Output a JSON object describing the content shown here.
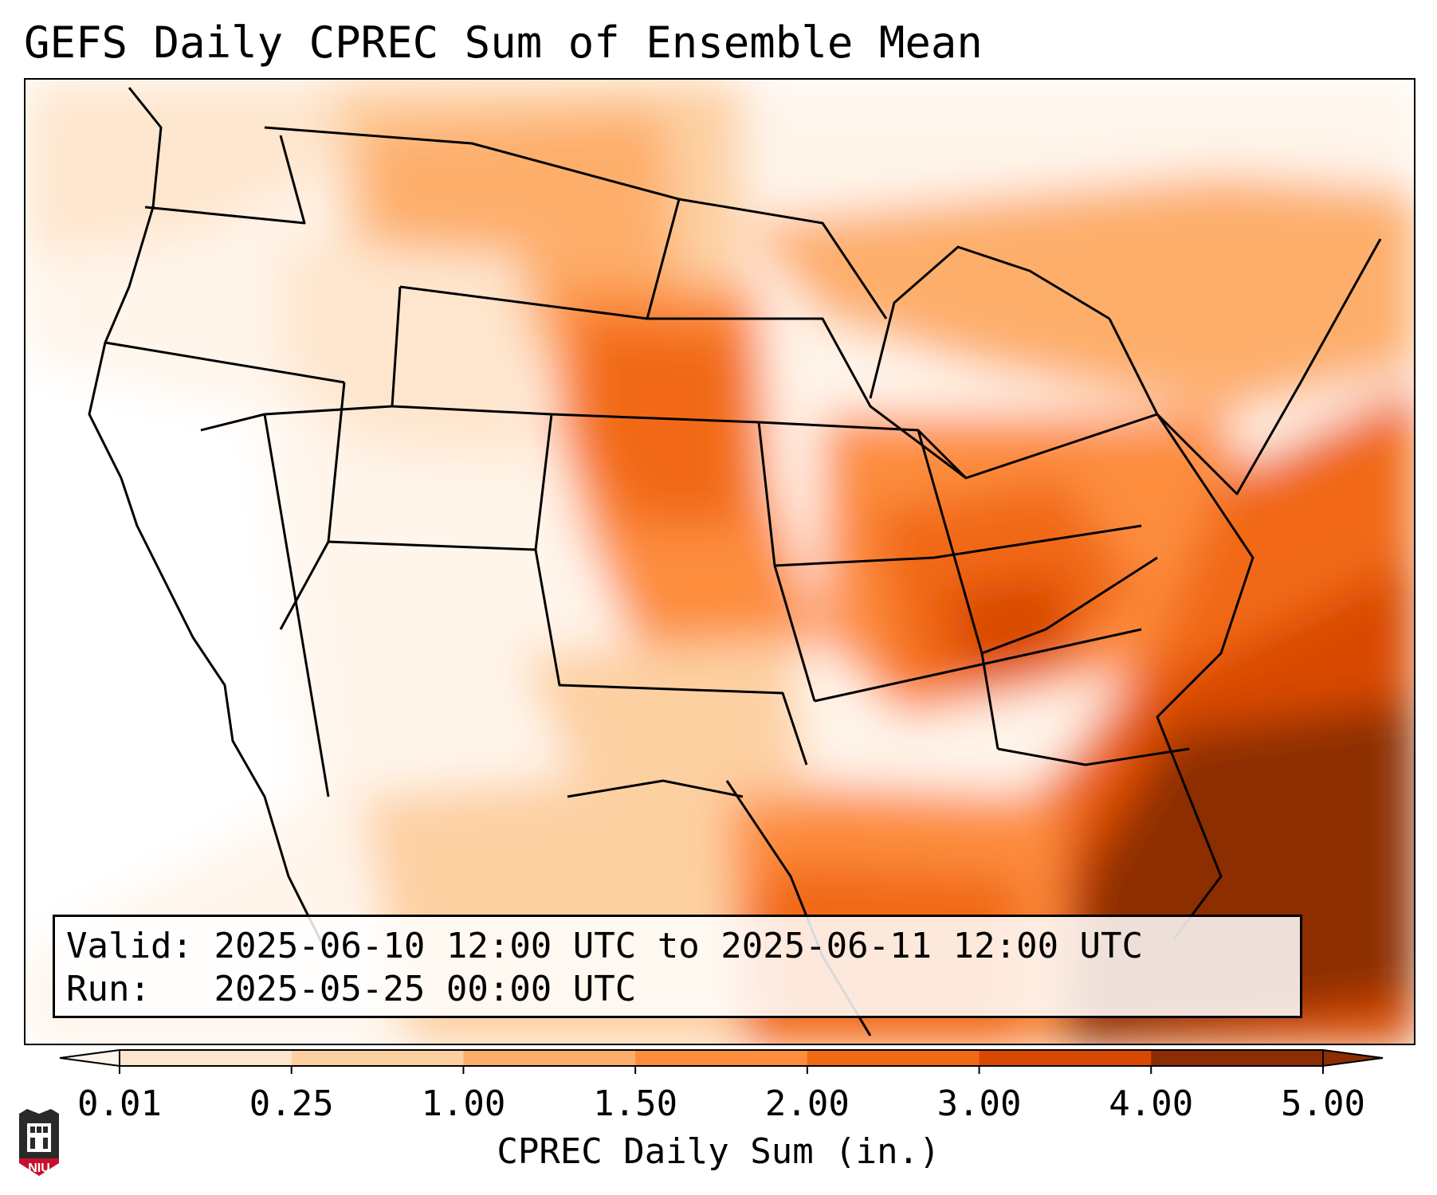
{
  "title": "GEFS Daily CPREC Sum of Ensemble Mean",
  "info": {
    "valid_label": "Valid:",
    "valid_value": "2025-06-10 12:00 UTC to 2025-06-11 12:00 UTC",
    "run_label": "Run:",
    "run_value": "2025-05-25 00:00 UTC"
  },
  "colorbar": {
    "label": "CPREC Daily Sum (in.)",
    "ticks": [
      "0.01",
      "0.25",
      "1.00",
      "1.50",
      "2.00",
      "3.00",
      "4.00",
      "5.00"
    ],
    "colors": [
      "#fff5eb",
      "#fee6ce",
      "#fdd0a2",
      "#fdae6b",
      "#fd8d3c",
      "#f16913",
      "#d94801",
      "#8c2d04"
    ]
  },
  "logo": {
    "text": "NIU"
  }
}
